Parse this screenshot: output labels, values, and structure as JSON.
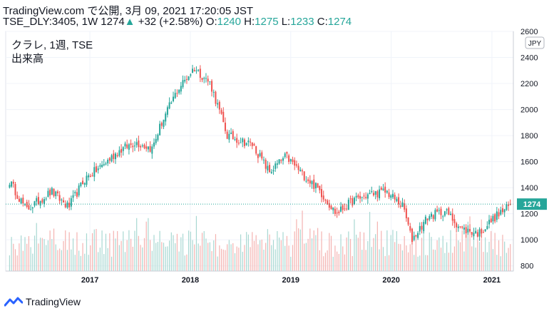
{
  "header": {
    "line1": "TradingView.com で公開, 3月 09, 2021 17:20:05 JST",
    "symbol_interval": "TSE_DLY:3405, 1W",
    "last_price": "1274",
    "change": "+32 (+2.58%)",
    "o_label": "O:",
    "o_value": "1240",
    "h_label": "H:",
    "h_value": "1275",
    "l_label": "L:",
    "l_value": "1233",
    "c_label": "C:",
    "c_value": "1274"
  },
  "pane": {
    "symbol_label": "クラレ, 1週, TSE",
    "volume_label": "出来高",
    "currency_badge": "JPY",
    "last_price_badge": "1274"
  },
  "footer": {
    "brand": "TradingView"
  },
  "colors": {
    "up": "#26a69a",
    "down": "#ef5350",
    "vol_up": "#a8d8d2",
    "vol_down": "#f4b3b1",
    "text": "#131722"
  },
  "chart_data": {
    "type": "candlestick",
    "y_ticks": [
      800,
      1000,
      1200,
      1400,
      1600,
      1800,
      2000,
      2200,
      2400,
      2600
    ],
    "x_ticks": [
      "2017",
      "2018",
      "2019",
      "2020",
      "2021"
    ],
    "ylim": [
      760,
      2600
    ],
    "last_price": 1274,
    "anchors": [
      {
        "date": "2016-03",
        "close": 1450
      },
      {
        "date": "2016-05",
        "close": 1230
      },
      {
        "date": "2016-08",
        "close": 1370
      },
      {
        "date": "2016-10",
        "close": 1250
      },
      {
        "date": "2016-12",
        "close": 1470
      },
      {
        "date": "2017-02",
        "close": 1570
      },
      {
        "date": "2017-04",
        "close": 1680
      },
      {
        "date": "2017-06",
        "close": 1750
      },
      {
        "date": "2017-08",
        "close": 1700
      },
      {
        "date": "2017-09",
        "close": 1880
      },
      {
        "date": "2017-11",
        "close": 2150
      },
      {
        "date": "2018-01",
        "close": 2320
      },
      {
        "date": "2018-03",
        "close": 2200
      },
      {
        "date": "2018-05",
        "close": 1800
      },
      {
        "date": "2018-08",
        "close": 1730
      },
      {
        "date": "2018-10",
        "close": 1520
      },
      {
        "date": "2018-12",
        "close": 1640
      },
      {
        "date": "2019-02",
        "close": 1500
      },
      {
        "date": "2019-04",
        "close": 1380
      },
      {
        "date": "2019-06",
        "close": 1200
      },
      {
        "date": "2019-08",
        "close": 1300
      },
      {
        "date": "2019-10",
        "close": 1350
      },
      {
        "date": "2019-12",
        "close": 1370
      },
      {
        "date": "2020-02",
        "close": 1250
      },
      {
        "date": "2020-03",
        "close": 1000
      },
      {
        "date": "2020-05",
        "close": 1180
      },
      {
        "date": "2020-07",
        "close": 1220
      },
      {
        "date": "2020-09",
        "close": 1080
      },
      {
        "date": "2020-11",
        "close": 1050
      },
      {
        "date": "2021-01",
        "close": 1180
      },
      {
        "date": "2021-03",
        "close": 1274
      }
    ]
  }
}
